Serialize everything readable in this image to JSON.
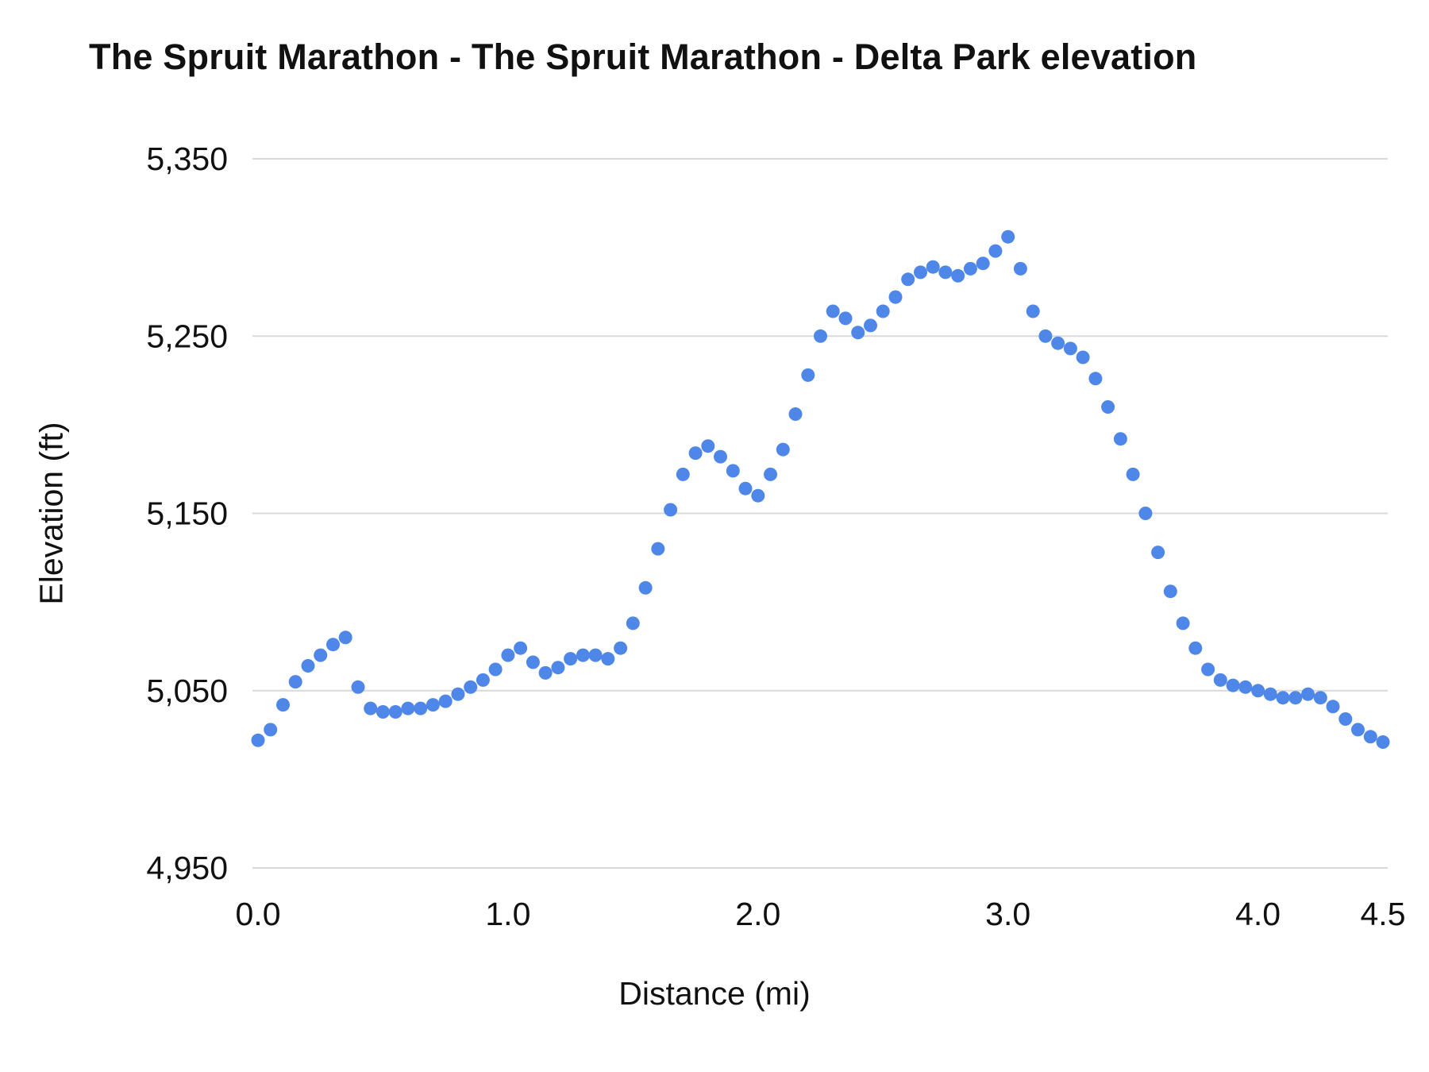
{
  "chart_data": {
    "type": "scatter",
    "title": "The Spruit Marathon - The Spruit Marathon - Delta Park elevation",
    "xlabel": "Distance (mi)",
    "ylabel": "Elevation (ft)",
    "xlim": [
      0,
      4.5
    ],
    "ylim": [
      4950,
      5350
    ],
    "grid": true,
    "legend_position": "none",
    "colors": {
      "point": "#4f87e8",
      "grid": "#d9d9d9",
      "text": "#111111"
    },
    "x_ticks": [
      {
        "value": 0.0,
        "label": "0.0"
      },
      {
        "value": 1.0,
        "label": "1.0"
      },
      {
        "value": 2.0,
        "label": "2.0"
      },
      {
        "value": 3.0,
        "label": "3.0"
      },
      {
        "value": 4.0,
        "label": "4.0"
      },
      {
        "value": 4.5,
        "label": "4.5"
      }
    ],
    "y_ticks": [
      {
        "value": 4950,
        "label": "4,950"
      },
      {
        "value": 5050,
        "label": "5,050"
      },
      {
        "value": 5150,
        "label": "5,150"
      },
      {
        "value": 5250,
        "label": "5,250"
      },
      {
        "value": 5350,
        "label": "5,350"
      }
    ],
    "series": [
      {
        "points": [
          [
            0.0,
            5022
          ],
          [
            0.05,
            5028
          ],
          [
            0.1,
            5042
          ],
          [
            0.15,
            5055
          ],
          [
            0.2,
            5064
          ],
          [
            0.25,
            5070
          ],
          [
            0.3,
            5076
          ],
          [
            0.35,
            5080
          ],
          [
            0.4,
            5052
          ],
          [
            0.45,
            5040
          ],
          [
            0.5,
            5038
          ],
          [
            0.55,
            5038
          ],
          [
            0.6,
            5040
          ],
          [
            0.65,
            5040
          ],
          [
            0.7,
            5042
          ],
          [
            0.75,
            5044
          ],
          [
            0.8,
            5048
          ],
          [
            0.85,
            5052
          ],
          [
            0.9,
            5056
          ],
          [
            0.95,
            5062
          ],
          [
            1.0,
            5070
          ],
          [
            1.05,
            5074
          ],
          [
            1.1,
            5066
          ],
          [
            1.15,
            5060
          ],
          [
            1.2,
            5063
          ],
          [
            1.25,
            5068
          ],
          [
            1.3,
            5070
          ],
          [
            1.35,
            5070
          ],
          [
            1.4,
            5068
          ],
          [
            1.45,
            5074
          ],
          [
            1.5,
            5088
          ],
          [
            1.55,
            5108
          ],
          [
            1.6,
            5130
          ],
          [
            1.65,
            5152
          ],
          [
            1.7,
            5172
          ],
          [
            1.75,
            5184
          ],
          [
            1.8,
            5188
          ],
          [
            1.85,
            5182
          ],
          [
            1.9,
            5174
          ],
          [
            1.95,
            5164
          ],
          [
            2.0,
            5160
          ],
          [
            2.05,
            5172
          ],
          [
            2.1,
            5186
          ],
          [
            2.15,
            5206
          ],
          [
            2.2,
            5228
          ],
          [
            2.25,
            5250
          ],
          [
            2.3,
            5264
          ],
          [
            2.35,
            5260
          ],
          [
            2.4,
            5252
          ],
          [
            2.45,
            5256
          ],
          [
            2.5,
            5264
          ],
          [
            2.55,
            5272
          ],
          [
            2.6,
            5282
          ],
          [
            2.65,
            5286
          ],
          [
            2.7,
            5289
          ],
          [
            2.75,
            5286
          ],
          [
            2.8,
            5284
          ],
          [
            2.85,
            5288
          ],
          [
            2.9,
            5291
          ],
          [
            2.95,
            5298
          ],
          [
            3.0,
            5306
          ],
          [
            3.05,
            5288
          ],
          [
            3.1,
            5264
          ],
          [
            3.15,
            5250
          ],
          [
            3.2,
            5246
          ],
          [
            3.25,
            5243
          ],
          [
            3.3,
            5238
          ],
          [
            3.35,
            5226
          ],
          [
            3.4,
            5210
          ],
          [
            3.45,
            5192
          ],
          [
            3.5,
            5172
          ],
          [
            3.55,
            5150
          ],
          [
            3.6,
            5128
          ],
          [
            3.65,
            5106
          ],
          [
            3.7,
            5088
          ],
          [
            3.75,
            5074
          ],
          [
            3.8,
            5062
          ],
          [
            3.85,
            5056
          ],
          [
            3.9,
            5053
          ],
          [
            3.95,
            5052
          ],
          [
            4.0,
            5050
          ],
          [
            4.05,
            5048
          ],
          [
            4.1,
            5046
          ],
          [
            4.15,
            5046
          ],
          [
            4.2,
            5048
          ],
          [
            4.25,
            5046
          ],
          [
            4.3,
            5041
          ],
          [
            4.35,
            5034
          ],
          [
            4.4,
            5028
          ],
          [
            4.45,
            5024
          ],
          [
            4.5,
            5021
          ]
        ]
      }
    ]
  }
}
